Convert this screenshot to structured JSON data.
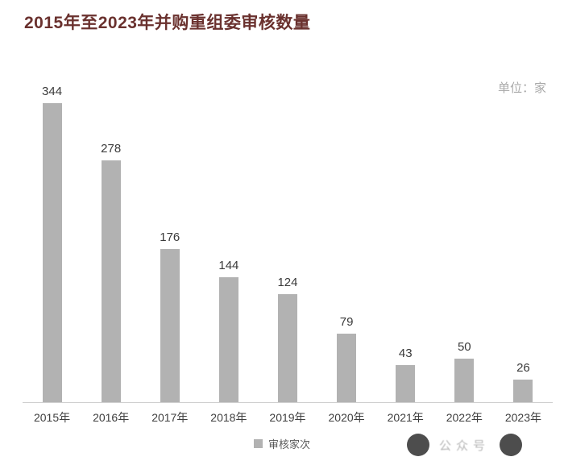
{
  "title": "2015年至2023年并购重组委审核数量",
  "unit_label": "单位：家",
  "legend": {
    "label": "审核家次"
  },
  "watermark": {
    "text": "公众号"
  },
  "colors": {
    "title": "#6a312e",
    "bar": "#b2b2b2",
    "value_label": "#3a3a3a",
    "axis_label": "#3f3f3f",
    "unit_label": "#a9a9a9",
    "legend_text": "#595959",
    "axis_line": "#cfcfcf"
  },
  "chart_data": {
    "type": "bar",
    "title": "2015年至2023年并购重组委审核数量",
    "categories": [
      "2015年",
      "2016年",
      "2017年",
      "2018年",
      "2019年",
      "2020年",
      "2021年",
      "2022年",
      "2023年"
    ],
    "values": [
      344,
      278,
      176,
      144,
      124,
      79,
      43,
      50,
      26
    ],
    "series": [
      {
        "name": "审核家次",
        "values": [
          344,
          278,
          176,
          144,
          124,
          79,
          43,
          50,
          26
        ]
      }
    ],
    "xlabel": "",
    "ylabel": "",
    "unit": "家",
    "ylim": [
      0,
      370
    ],
    "grid": false,
    "data_labels": true,
    "legend": [
      "审核家次"
    ],
    "legend_position": "bottom"
  }
}
